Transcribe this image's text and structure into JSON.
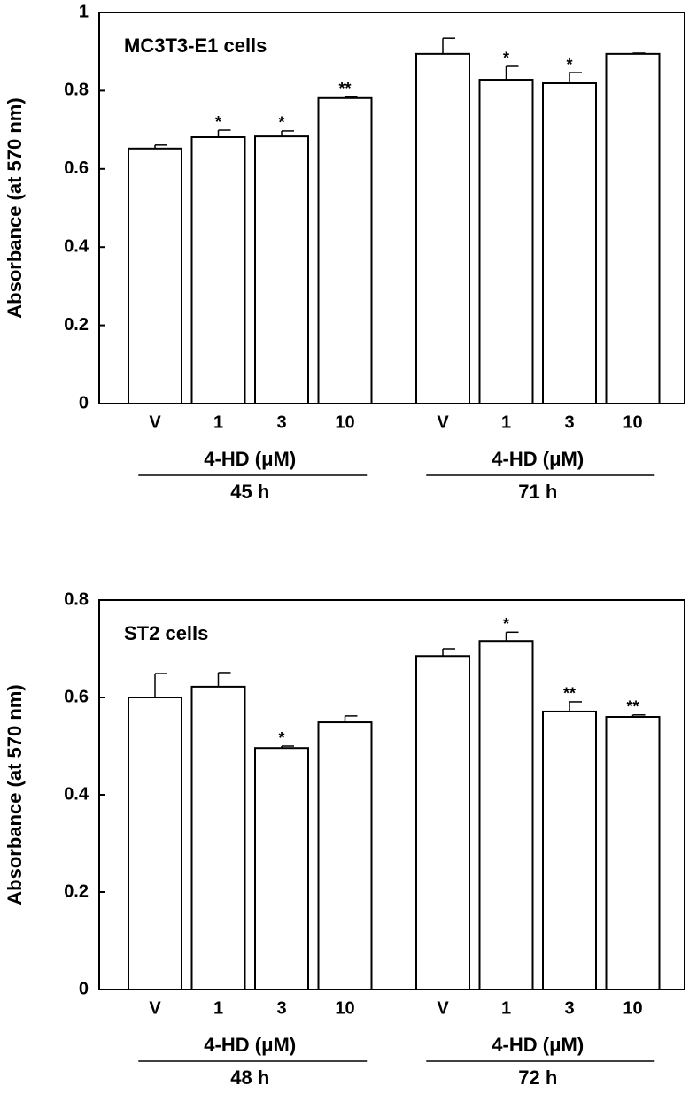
{
  "chart_data": [
    {
      "type": "bar",
      "ylabel": "Absorbance (at 570 nm)",
      "annotation": "MC3T3-E1 cells",
      "color": "#ffffff",
      "ylim": [
        0,
        1
      ],
      "yticks": [
        0,
        0.2,
        0.4,
        0.6,
        0.8,
        1
      ],
      "groups": [
        {
          "categories": [
            "V",
            "1",
            "3",
            "10"
          ],
          "xlabel": "4-HD (μM)",
          "group_label": "45 h",
          "values": [
            0.652,
            0.681,
            0.683,
            0.781
          ],
          "errors": [
            0.009,
            0.018,
            0.014,
            0.003
          ],
          "significance": [
            null,
            "*",
            "*",
            "**"
          ]
        },
        {
          "categories": [
            "V",
            "1",
            "3",
            "10"
          ],
          "xlabel": "4-HD (μM)",
          "group_label": "71 h",
          "values": [
            0.894,
            0.828,
            0.819,
            0.894
          ],
          "errors": [
            0.04,
            0.034,
            0.027,
            0.002
          ],
          "significance": [
            null,
            "*",
            "*",
            null
          ]
        }
      ]
    },
    {
      "type": "bar",
      "ylabel": "Absorbance (at 570 nm)",
      "annotation": "ST2 cells",
      "color": "#ffffff",
      "ylim": [
        0,
        0.8
      ],
      "yticks": [
        0,
        0.2,
        0.4,
        0.6,
        0.8
      ],
      "groups": [
        {
          "categories": [
            "V",
            "1",
            "3",
            "10"
          ],
          "xlabel": "4-HD (μM)",
          "group_label": "48 h",
          "values": [
            0.6,
            0.622,
            0.496,
            0.549
          ],
          "errors": [
            0.049,
            0.029,
            0.004,
            0.013
          ],
          "significance": [
            null,
            null,
            "*",
            null
          ]
        },
        {
          "categories": [
            "V",
            "1",
            "3",
            "10"
          ],
          "xlabel": "4-HD (μM)",
          "group_label": "72 h",
          "values": [
            0.685,
            0.716,
            0.571,
            0.56
          ],
          "errors": [
            0.015,
            0.018,
            0.02,
            0.004
          ],
          "significance": [
            null,
            "*",
            "**",
            "**"
          ]
        }
      ]
    }
  ]
}
